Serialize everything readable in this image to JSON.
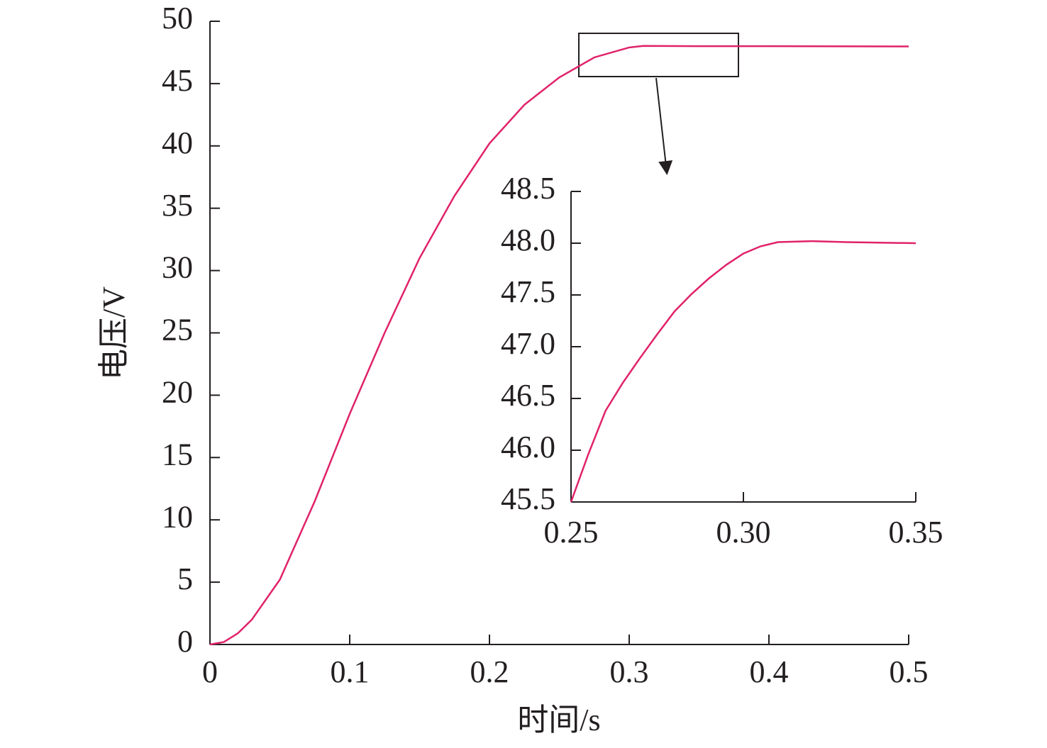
{
  "chart_data": [
    {
      "type": "line",
      "x_label": "时间/s",
      "y_label": "电压/V",
      "color": "#e0226a",
      "x": [
        0,
        0.01,
        0.02,
        0.03,
        0.05,
        0.075,
        0.1,
        0.125,
        0.15,
        0.175,
        0.2,
        0.225,
        0.25,
        0.275,
        0.3,
        0.31,
        0.35,
        0.4,
        0.5
      ],
      "values": [
        0,
        0.2,
        0.9,
        2.0,
        5.2,
        11.5,
        18.5,
        25,
        31,
        36,
        40.2,
        43.3,
        45.5,
        47.1,
        47.9,
        48.02,
        48.0,
        48.0,
        47.98
      ],
      "xlim": [
        0,
        0.5
      ],
      "xticks": [
        0,
        0.1,
        0.2,
        0.3,
        0.4,
        0.5
      ],
      "ylim": [
        0,
        50
      ],
      "yticks": [
        0,
        5,
        10,
        15,
        20,
        25,
        30,
        35,
        40,
        45,
        50
      ]
    },
    {
      "type": "line",
      "color": "#e0226a",
      "x": [
        0.25,
        0.255,
        0.26,
        0.265,
        0.27,
        0.275,
        0.28,
        0.285,
        0.29,
        0.295,
        0.3,
        0.305,
        0.31,
        0.32,
        0.33,
        0.35
      ],
      "values": [
        45.5,
        45.96,
        46.38,
        46.65,
        46.89,
        47.12,
        47.34,
        47.51,
        47.66,
        47.79,
        47.9,
        47.97,
        48.01,
        48.02,
        48.01,
        48.0
      ],
      "xlim": [
        0.25,
        0.35
      ],
      "xticks": [
        0.25,
        {
          "value": 0.3,
          "label": "0.30"
        },
        0.35
      ],
      "ylim": [
        45.5,
        48.5
      ],
      "yticks": [
        45.5,
        {
          "value": 46,
          "label": "46.0"
        },
        46.5,
        {
          "value": 47,
          "label": "47.0"
        },
        47.5,
        {
          "value": 48,
          "label": "48.0"
        },
        48.5
      ]
    }
  ]
}
